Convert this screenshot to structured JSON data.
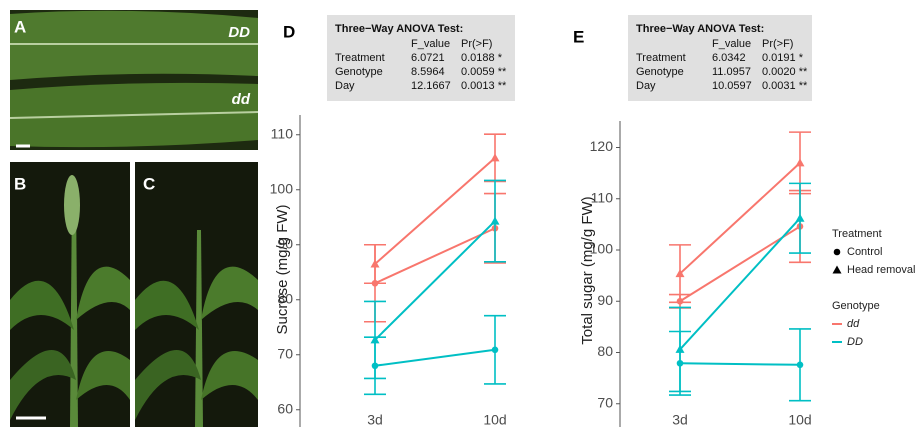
{
  "panel_labels": [
    "A",
    "B",
    "C"
  ],
  "photo_labels": [
    "DD",
    "dd"
  ],
  "legend": {
    "treatment_title": "Treatment",
    "treatments": [
      {
        "label": "Control",
        "marker": "circle"
      },
      {
        "label": "Head removal",
        "marker": "triangle"
      }
    ],
    "genotype_title": "Genotype",
    "genotypes": [
      {
        "label": "dd",
        "color": "#f8766d"
      },
      {
        "label": "DD",
        "color": "#00bfc4"
      }
    ]
  },
  "chart_data": [
    {
      "type": "line",
      "panel_label": "D",
      "y_label": "Sucrose (mg/g FW)",
      "table": {
        "title": "Three−Way ANOVA Test:",
        "header": [
          "F_value",
          "Pr(>F)"
        ],
        "rows": [
          [
            "Treatment",
            "6.0721",
            "0.0188 *"
          ],
          [
            "Genotype",
            "8.5964",
            "0.0059 **"
          ],
          [
            "Day",
            "12.1667",
            "0.0013 **"
          ]
        ]
      },
      "categories": [
        "3d",
        "10d"
      ],
      "ylim": [
        58.5,
        112.5
      ],
      "yticks": [
        60,
        70,
        80,
        90,
        100,
        110
      ],
      "series": [
        {
          "genotype": 0,
          "treatment": 1,
          "values": [
            86.5,
            105.8
          ],
          "errors": [
            3.5,
            4.3
          ]
        },
        {
          "genotype": 0,
          "treatment": 0,
          "values": [
            83,
            93
          ],
          "errors": [
            7,
            6.3
          ]
        },
        {
          "genotype": 1,
          "treatment": 1,
          "values": [
            72.7,
            94.3
          ],
          "errors": [
            7,
            7.4
          ]
        },
        {
          "genotype": 1,
          "treatment": 0,
          "values": [
            68,
            70.9
          ],
          "errors": [
            5.2,
            6.2
          ]
        }
      ]
    },
    {
      "type": "line",
      "panel_label": "E",
      "y_label": "Total sugar (mg/g FW)",
      "table": {
        "title": "Three−Way ANOVA Test:",
        "header": [
          "F_value",
          "Pr(>F)"
        ],
        "rows": [
          [
            "Treatment",
            "6.0342",
            "0.0191 *"
          ],
          [
            "Genotype",
            "11.0957",
            "0.0020 **"
          ],
          [
            "Day",
            "10.0597",
            "0.0031 **"
          ]
        ]
      },
      "categories": [
        "3d",
        "10d"
      ],
      "ylim": [
        68,
        124
      ],
      "yticks": [
        70,
        80,
        90,
        100,
        110,
        120
      ],
      "series": [
        {
          "genotype": 0,
          "treatment": 1,
          "values": [
            95.4,
            117
          ],
          "errors": [
            5.6,
            6
          ]
        },
        {
          "genotype": 0,
          "treatment": 0,
          "values": [
            90,
            104.6
          ],
          "errors": [
            1.3,
            7
          ]
        },
        {
          "genotype": 1,
          "treatment": 1,
          "values": [
            80.6,
            106.2
          ],
          "errors": [
            8.2,
            6.8
          ]
        },
        {
          "genotype": 1,
          "treatment": 0,
          "values": [
            77.9,
            77.6
          ],
          "errors": [
            6.2,
            7
          ]
        }
      ]
    }
  ]
}
